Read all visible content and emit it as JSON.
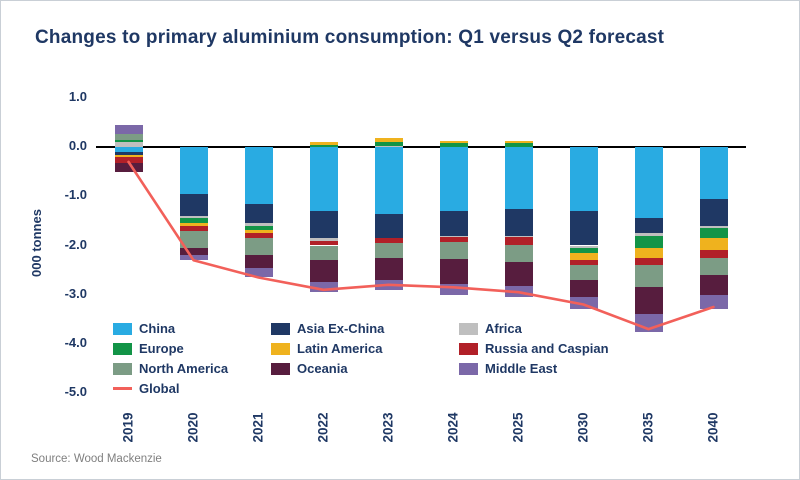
{
  "title": "Changes to primary aluminium consumption: Q1 versus Q2 forecast",
  "source": "Source: Wood Mackenzie",
  "colors": {
    "title_text": "#1F3864",
    "axis_text": "#1F3864",
    "zero_line": "#000000",
    "card_border": "#C9CFD6",
    "global_line": "#F2605A"
  },
  "chart_data": {
    "type": "bar",
    "stacked": true,
    "title": "Changes to primary aluminium consumption: Q1 versus Q2 forecast",
    "xlabel": "",
    "ylabel": "000 tonnes",
    "ylim": [
      -5.0,
      1.0
    ],
    "ytick_step": 1.0,
    "grid": false,
    "legend_position": "inside-bottom-left",
    "categories": [
      "2019",
      "2020",
      "2021",
      "2022",
      "2023",
      "2024",
      "2025",
      "2030",
      "2035",
      "2040"
    ],
    "series": [
      {
        "name": "China",
        "color": "#29ABE2",
        "values": [
          -0.1,
          -0.95,
          -1.15,
          -1.3,
          -1.35,
          -1.3,
          -1.25,
          -1.3,
          -1.45,
          -1.05
        ]
      },
      {
        "name": "Asia Ex-China",
        "color": "#1F3864",
        "values": [
          -0.05,
          -0.45,
          -0.4,
          -0.55,
          -0.5,
          -0.5,
          -0.55,
          -0.7,
          -0.3,
          -0.55
        ]
      },
      {
        "name": "Africa",
        "color": "#BFBFBF",
        "values": [
          0.1,
          -0.05,
          -0.05,
          -0.05,
          0.02,
          -0.03,
          -0.03,
          -0.05,
          -0.05,
          -0.05
        ]
      },
      {
        "name": "Europe",
        "color": "#129447",
        "values": [
          0.05,
          -0.1,
          -0.08,
          0.05,
          0.08,
          0.08,
          0.08,
          -0.1,
          -0.25,
          -0.2
        ]
      },
      {
        "name": "Latin America",
        "color": "#EFB21E",
        "values": [
          -0.05,
          -0.05,
          -0.07,
          0.05,
          0.08,
          0.05,
          0.05,
          -0.15,
          -0.2,
          -0.25
        ]
      },
      {
        "name": "Russia and Caspian",
        "color": "#B12028",
        "values": [
          -0.12,
          -0.1,
          -0.1,
          -0.1,
          -0.1,
          -0.1,
          -0.15,
          -0.1,
          -0.15,
          -0.15
        ]
      },
      {
        "name": "North America",
        "color": "#7C9C85",
        "values": [
          0.12,
          -0.35,
          -0.35,
          -0.3,
          -0.3,
          -0.35,
          -0.35,
          -0.3,
          -0.45,
          -0.35
        ]
      },
      {
        "name": "Oceania",
        "color": "#571D3E",
        "values": [
          -0.18,
          -0.15,
          -0.25,
          -0.45,
          -0.45,
          -0.5,
          -0.5,
          -0.35,
          -0.55,
          -0.4
        ]
      },
      {
        "name": "Middle East",
        "color": "#7B68A8",
        "values": [
          0.18,
          -0.1,
          -0.2,
          -0.2,
          -0.2,
          -0.22,
          -0.22,
          -0.25,
          -0.35,
          -0.3
        ]
      }
    ],
    "line_series": {
      "name": "Global",
      "color": "#F2605A",
      "values": [
        -0.3,
        -2.3,
        -2.65,
        -2.9,
        -2.8,
        -2.85,
        -2.95,
        -3.2,
        -3.7,
        -3.25
      ]
    }
  }
}
